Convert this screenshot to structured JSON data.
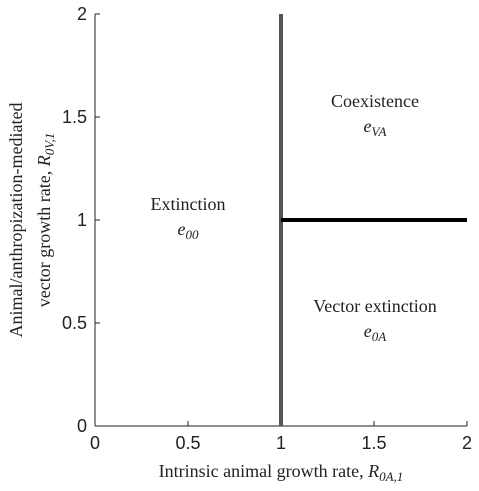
{
  "chart_data": {
    "type": "line",
    "xlabel": {
      "text": "Intrinsic animal growth rate, ",
      "symbol": "R",
      "subscript": "0A,1"
    },
    "ylabel": {
      "lines": [
        "Animal/anthropization-mediated",
        "vector growth rate, "
      ],
      "symbol": "R",
      "subscript": "0V,1"
    },
    "xlim": [
      0,
      2
    ],
    "ylim": [
      0,
      2
    ],
    "xticks": [
      0,
      0.5,
      1,
      1.5,
      2
    ],
    "yticks": [
      0,
      0.5,
      1,
      1.5,
      2
    ],
    "series": [
      {
        "x": [
          1,
          1
        ],
        "values": [
          0,
          2
        ],
        "color": "#555555"
      },
      {
        "x": [
          1,
          2
        ],
        "values": [
          1,
          1
        ],
        "color": "#000000"
      }
    ],
    "annotations": [
      {
        "text": "Extinction",
        "symbol": "e",
        "subscript": "00"
      },
      {
        "text": "Coexistence",
        "symbol": "e",
        "subscript": "VA"
      },
      {
        "text": "Vector extinction",
        "symbol": "e",
        "subscript": "0A"
      }
    ]
  }
}
